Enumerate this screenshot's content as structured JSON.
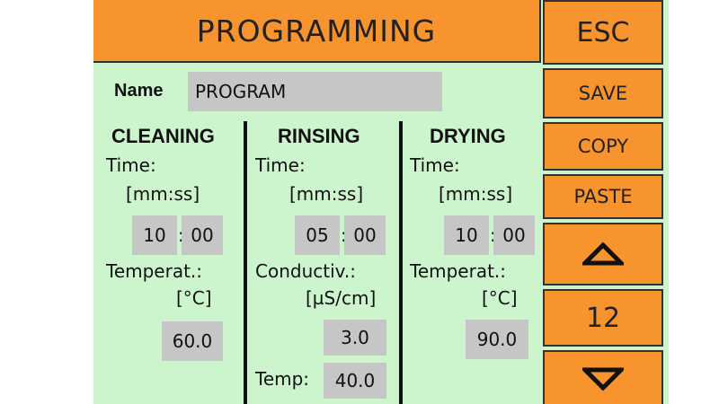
{
  "header": {
    "title": "PROGRAMMING"
  },
  "name": {
    "label": "Name",
    "value": "PROGRAM"
  },
  "cleaning": {
    "heading": "CLEANING",
    "time_label": "Time:",
    "time_unit": "[mm:ss]",
    "minutes": "10",
    "seconds": "00",
    "temp_label": "Temperat.:",
    "temp_unit": "[°C]",
    "temp_value": "60.0"
  },
  "rinsing": {
    "heading": "RINSING",
    "time_label": "Time:",
    "time_unit": "[mm:ss]",
    "minutes": "05",
    "seconds": "00",
    "cond_label": "Conductiv.:",
    "cond_unit": "[µS/cm]",
    "cond_value": "3.0",
    "temp_label": "Temp:",
    "temp_value": "40.0"
  },
  "drying": {
    "heading": "DRYING",
    "time_label": "Time:",
    "time_unit": "[mm:ss]",
    "minutes": "10",
    "seconds": "00",
    "temp_label": "Temperat.:",
    "temp_unit": "[°C]",
    "temp_value": "90.0"
  },
  "colon": ":",
  "side": {
    "esc": "ESC",
    "save": "SAVE",
    "copy": "COPY",
    "paste": "PASTE",
    "program_number": "12",
    "up_icon": "triangle-up",
    "down_icon": "triangle-down"
  },
  "colors": {
    "accent": "#f7942e",
    "background": "#cdf5cd",
    "field": "#c6c6c6"
  }
}
